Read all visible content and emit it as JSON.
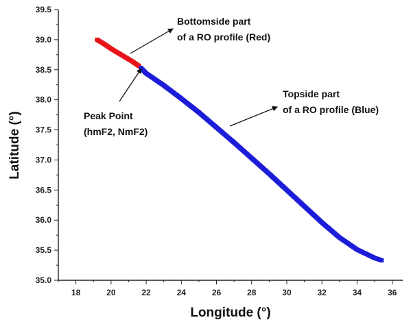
{
  "chart_data": {
    "type": "scatter",
    "xlabel": "Longitude (°)",
    "ylabel": "Latitude (°)",
    "xlim": [
      17,
      36.6
    ],
    "ylim": [
      35.0,
      39.5
    ],
    "xticks": [
      "18",
      "20",
      "22",
      "24",
      "26",
      "28",
      "30",
      "32",
      "34",
      "36"
    ],
    "yticks": [
      "35.0",
      "35.5",
      "36.0",
      "36.5",
      "37.0",
      "37.5",
      "38.0",
      "38.5",
      "39.0",
      "39.5"
    ],
    "grid": false,
    "legend": "none",
    "series": [
      {
        "color": "#e8141a",
        "x": [
          19.2,
          19.6,
          20.0,
          20.4,
          20.8,
          21.2,
          21.6
        ],
        "y": [
          39.0,
          38.93,
          38.85,
          38.78,
          38.71,
          38.64,
          38.56
        ]
      },
      {
        "color": "#1c1cd9",
        "x": [
          21.7,
          22.0,
          23.0,
          24.0,
          25.0,
          26.0,
          27.0,
          28.0,
          29.0,
          30.0,
          31.0,
          32.0,
          33.0,
          34.0,
          34.5,
          35.0,
          35.4
        ],
        "y": [
          38.53,
          38.44,
          38.24,
          38.02,
          37.79,
          37.54,
          37.29,
          37.03,
          36.77,
          36.5,
          36.23,
          35.96,
          35.71,
          35.51,
          35.44,
          35.37,
          35.33
        ]
      }
    ],
    "annotations": [
      {
        "lines": [
          "Bottomside part",
          "of a RO profile (Red)"
        ]
      },
      {
        "lines": [
          "Topside part",
          "of a RO profile (Blue)"
        ]
      },
      {
        "lines": [
          "Peak Point",
          "(hmF2, NmF2)"
        ]
      }
    ]
  }
}
